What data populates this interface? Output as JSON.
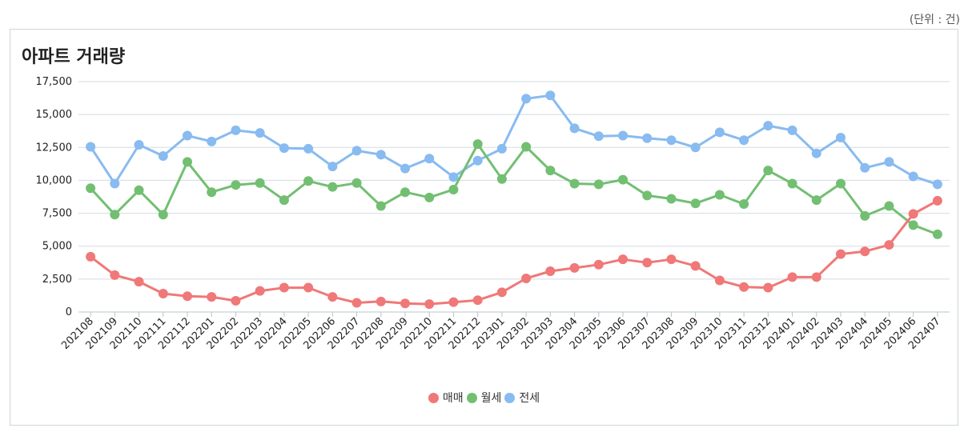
{
  "unit_label": "(단위 : 건)",
  "chart_data": {
    "type": "line",
    "title": "아파트 거래량",
    "xlabel": "",
    "ylabel": "",
    "ylim": [
      0,
      17500
    ],
    "yticks": [
      "17,500",
      "15,000",
      "12,500",
      "10,000",
      "7,500",
      "5,000",
      "2,500",
      "0"
    ],
    "ytick_values": [
      17500,
      15000,
      12500,
      10000,
      7500,
      5000,
      2500,
      0
    ],
    "grid": true,
    "legend_position": "bottom-center",
    "x": [
      "202108",
      "202109",
      "202110",
      "202111",
      "202112",
      "202201",
      "202202",
      "202203",
      "202204",
      "202205",
      "202206",
      "202207",
      "202208",
      "202209",
      "202210",
      "202211",
      "202212",
      "202301",
      "202302",
      "202303",
      "202304",
      "202305",
      "202306",
      "202307",
      "202308",
      "202309",
      "202310",
      "202311",
      "202312",
      "202401",
      "202402",
      "202403",
      "202404",
      "202405",
      "202406",
      "202407"
    ],
    "series": [
      {
        "name": "매매",
        "color": "#f07878",
        "values": [
          4200,
          2800,
          2300,
          1400,
          1200,
          1150,
          850,
          1600,
          1850,
          1850,
          1150,
          700,
          800,
          650,
          600,
          750,
          900,
          1500,
          2550,
          3100,
          3350,
          3600,
          4000,
          3750,
          4000,
          3500,
          2400,
          1900,
          1850,
          2650,
          2650,
          4400,
          4600,
          5100,
          7450,
          8450
        ]
      },
      {
        "name": "월세",
        "color": "#72bf72",
        "values": [
          9400,
          7400,
          9250,
          7400,
          11400,
          9100,
          9650,
          9800,
          8500,
          9950,
          9500,
          9800,
          8050,
          9100,
          8700,
          9300,
          12750,
          10100,
          12550,
          10750,
          9750,
          9700,
          10050,
          8850,
          8600,
          8250,
          8900,
          8200,
          10750,
          9750,
          8500,
          9750,
          7300,
          8050,
          6600,
          5900
        ]
      },
      {
        "name": "전세",
        "color": "#88bbf0",
        "values": [
          12550,
          9750,
          12700,
          11850,
          13400,
          12950,
          13800,
          13600,
          12450,
          12400,
          11050,
          12250,
          11950,
          10900,
          11650,
          10250,
          11500,
          12400,
          16200,
          16450,
          13950,
          13350,
          13400,
          13200,
          13050,
          12500,
          13650,
          13050,
          14150,
          13800,
          12050,
          13250,
          10950,
          11400,
          10300,
          9700
        ]
      }
    ]
  }
}
